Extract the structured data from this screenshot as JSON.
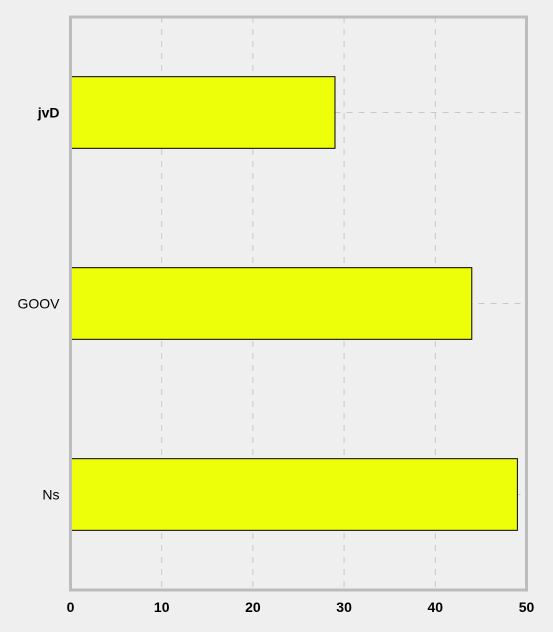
{
  "chart_data": {
    "type": "bar",
    "orientation": "horizontal",
    "categories": [
      "jvD",
      "GOOV",
      "Ns"
    ],
    "values": [
      29,
      44,
      49
    ],
    "x_ticks": [
      0,
      10,
      20,
      30,
      40,
      50
    ],
    "xlim": [
      0,
      50
    ],
    "grid": true,
    "bar_color": "#eeff0a",
    "bar_edge_color": "#000000",
    "background_color": "#efefef",
    "frame_color": "#bcbcbc",
    "grid_color": "#c8c8c8"
  }
}
